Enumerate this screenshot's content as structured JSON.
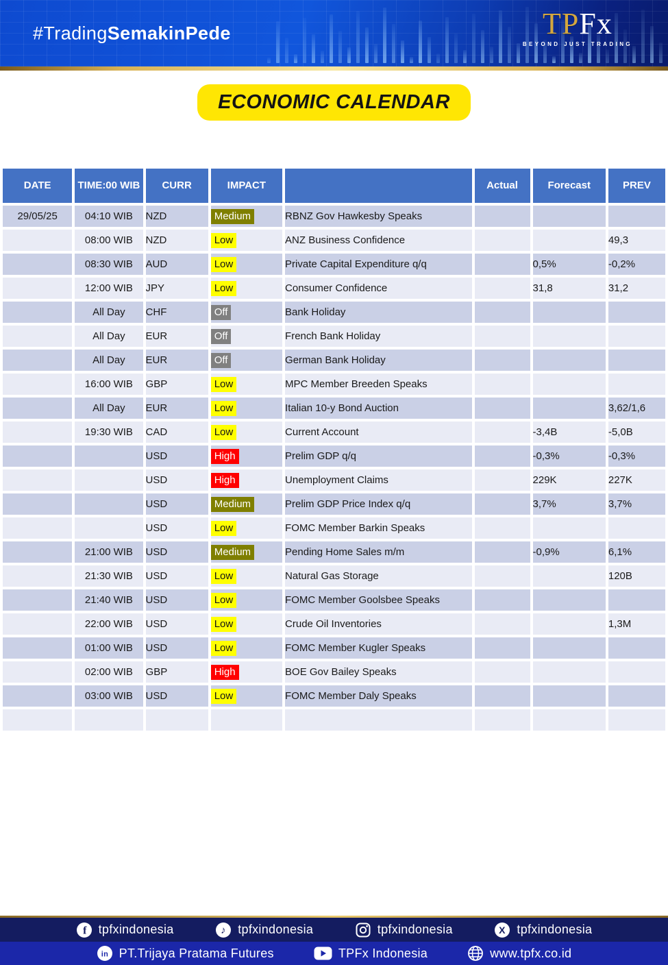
{
  "header": {
    "hashtag": {
      "regular": "#Trading",
      "bold": "SemakinPede"
    },
    "logo": {
      "tp": "TP",
      "fx": "Fx",
      "tagline": "BEYOND JUST TRADING"
    }
  },
  "title": {
    "label": "ECONOMIC CALENDAR"
  },
  "table": {
    "headers": [
      "DATE",
      "TIME:00 WIB",
      "CURR",
      "IMPACT",
      "",
      "Actual",
      "Forecast",
      "PREV"
    ],
    "rows": [
      {
        "date": "29/05/25",
        "time": "04:10 WIB",
        "curr": "NZD",
        "impact": "Medium",
        "event": "RBNZ Gov Hawkesby Speaks",
        "actual": "",
        "forecast": "",
        "prev": ""
      },
      {
        "date": "",
        "time": "08:00 WIB",
        "curr": "NZD",
        "impact": "Low",
        "event": "ANZ Business Confidence",
        "actual": "",
        "forecast": "",
        "prev": "49,3"
      },
      {
        "date": "",
        "time": "08:30 WIB",
        "curr": "AUD",
        "impact": "Low",
        "event": "Private Capital Expenditure q/q",
        "actual": "",
        "forecast": "0,5%",
        "prev": "-0,2%"
      },
      {
        "date": "",
        "time": "12:00 WIB",
        "curr": "JPY",
        "impact": "Low",
        "event": "Consumer Confidence",
        "actual": "",
        "forecast": "31,8",
        "prev": "31,2"
      },
      {
        "date": "",
        "time": "All Day",
        "curr": "CHF",
        "impact": "Off",
        "event": "Bank Holiday",
        "actual": "",
        "forecast": "",
        "prev": ""
      },
      {
        "date": "",
        "time": "All Day",
        "curr": "EUR",
        "impact": "Off",
        "event": "French Bank Holiday",
        "actual": "",
        "forecast": "",
        "prev": ""
      },
      {
        "date": "",
        "time": "All Day",
        "curr": "EUR",
        "impact": "Off",
        "event": "German Bank Holiday",
        "actual": "",
        "forecast": "",
        "prev": ""
      },
      {
        "date": "",
        "time": "16:00 WIB",
        "curr": "GBP",
        "impact": "Low",
        "event": "MPC Member Breeden Speaks",
        "actual": "",
        "forecast": "",
        "prev": ""
      },
      {
        "date": "",
        "time": "All Day",
        "curr": "EUR",
        "impact": "Low",
        "event": "Italian 10-y Bond Auction",
        "actual": "",
        "forecast": "",
        "prev": "3,62/1,6"
      },
      {
        "date": "",
        "time": "19:30 WIB",
        "curr": "CAD",
        "impact": "Low",
        "event": "Current Account",
        "actual": "",
        "forecast": "-3,4B",
        "prev": "-5,0B"
      },
      {
        "date": "",
        "time": "",
        "curr": "USD",
        "impact": "High",
        "event": "Prelim GDP q/q",
        "actual": "",
        "forecast": "-0,3%",
        "prev": "-0,3%"
      },
      {
        "date": "",
        "time": "",
        "curr": "USD",
        "impact": "High",
        "event": "Unemployment Claims",
        "actual": "",
        "forecast": "229K",
        "prev": "227K"
      },
      {
        "date": "",
        "time": "",
        "curr": "USD",
        "impact": "Medium",
        "event": "Prelim GDP Price Index q/q",
        "actual": "",
        "forecast": "3,7%",
        "prev": "3,7%"
      },
      {
        "date": "",
        "time": "",
        "curr": "USD",
        "impact": "Low",
        "event": "FOMC Member Barkin Speaks",
        "actual": "",
        "forecast": "",
        "prev": ""
      },
      {
        "date": "",
        "time": "21:00 WIB",
        "curr": "USD",
        "impact": "Medium",
        "event": "Pending Home Sales m/m",
        "actual": "",
        "forecast": "-0,9%",
        "prev": "6,1%"
      },
      {
        "date": "",
        "time": "21:30 WIB",
        "curr": "USD",
        "impact": "Low",
        "event": "Natural Gas Storage",
        "actual": "",
        "forecast": "",
        "prev": "120B"
      },
      {
        "date": "",
        "time": "21:40 WIB",
        "curr": "USD",
        "impact": "Low",
        "event": "FOMC Member Goolsbee Speaks",
        "actual": "",
        "forecast": "",
        "prev": ""
      },
      {
        "date": "",
        "time": "22:00 WIB",
        "curr": "USD",
        "impact": "Low",
        "event": "Crude Oil Inventories",
        "actual": "",
        "forecast": "",
        "prev": "1,3M"
      },
      {
        "date": "",
        "time": "01:00 WIB",
        "curr": "USD",
        "impact": "Low",
        "event": "FOMC Member Kugler Speaks",
        "actual": "",
        "forecast": "",
        "prev": ""
      },
      {
        "date": "",
        "time": "02:00 WIB",
        "curr": "GBP",
        "impact": "High",
        "event": "BOE Gov Bailey Speaks",
        "actual": "",
        "forecast": "",
        "prev": ""
      },
      {
        "date": "",
        "time": "03:00 WIB",
        "curr": "USD",
        "impact": "Low",
        "event": "FOMC Member Daly Speaks",
        "actual": "",
        "forecast": "",
        "prev": ""
      },
      {
        "date": "",
        "time": "",
        "curr": "",
        "impact": "",
        "event": "",
        "actual": "",
        "forecast": "",
        "prev": ""
      }
    ]
  },
  "impact_levels": {
    "Medium": "#7f7f00",
    "Low": "#ffff00",
    "High": "#ff0000",
    "Off": "#808080"
  },
  "colors": {
    "table_header": "#4472c4",
    "row_dark": "#cad0e6",
    "row_light": "#e9ebf5",
    "title_badge": "#ffe603",
    "footer_top": "#141c60",
    "footer_bottom": "#1b27a9"
  },
  "footer": {
    "social": [
      {
        "icon": "facebook-icon",
        "label": "tpfxindonesia"
      },
      {
        "icon": "tiktok-icon",
        "label": "tpfxindonesia"
      },
      {
        "icon": "instagram-icon",
        "label": "tpfxindonesia"
      },
      {
        "icon": "x-icon",
        "label": "tpfxindonesia"
      }
    ],
    "links": [
      {
        "icon": "linkedin-icon",
        "label": "PT.Trijaya Pratama Futures"
      },
      {
        "icon": "youtube-icon",
        "label": "TPFx Indonesia"
      },
      {
        "icon": "globe-icon",
        "label": "www.tpfx.co.id"
      }
    ]
  }
}
